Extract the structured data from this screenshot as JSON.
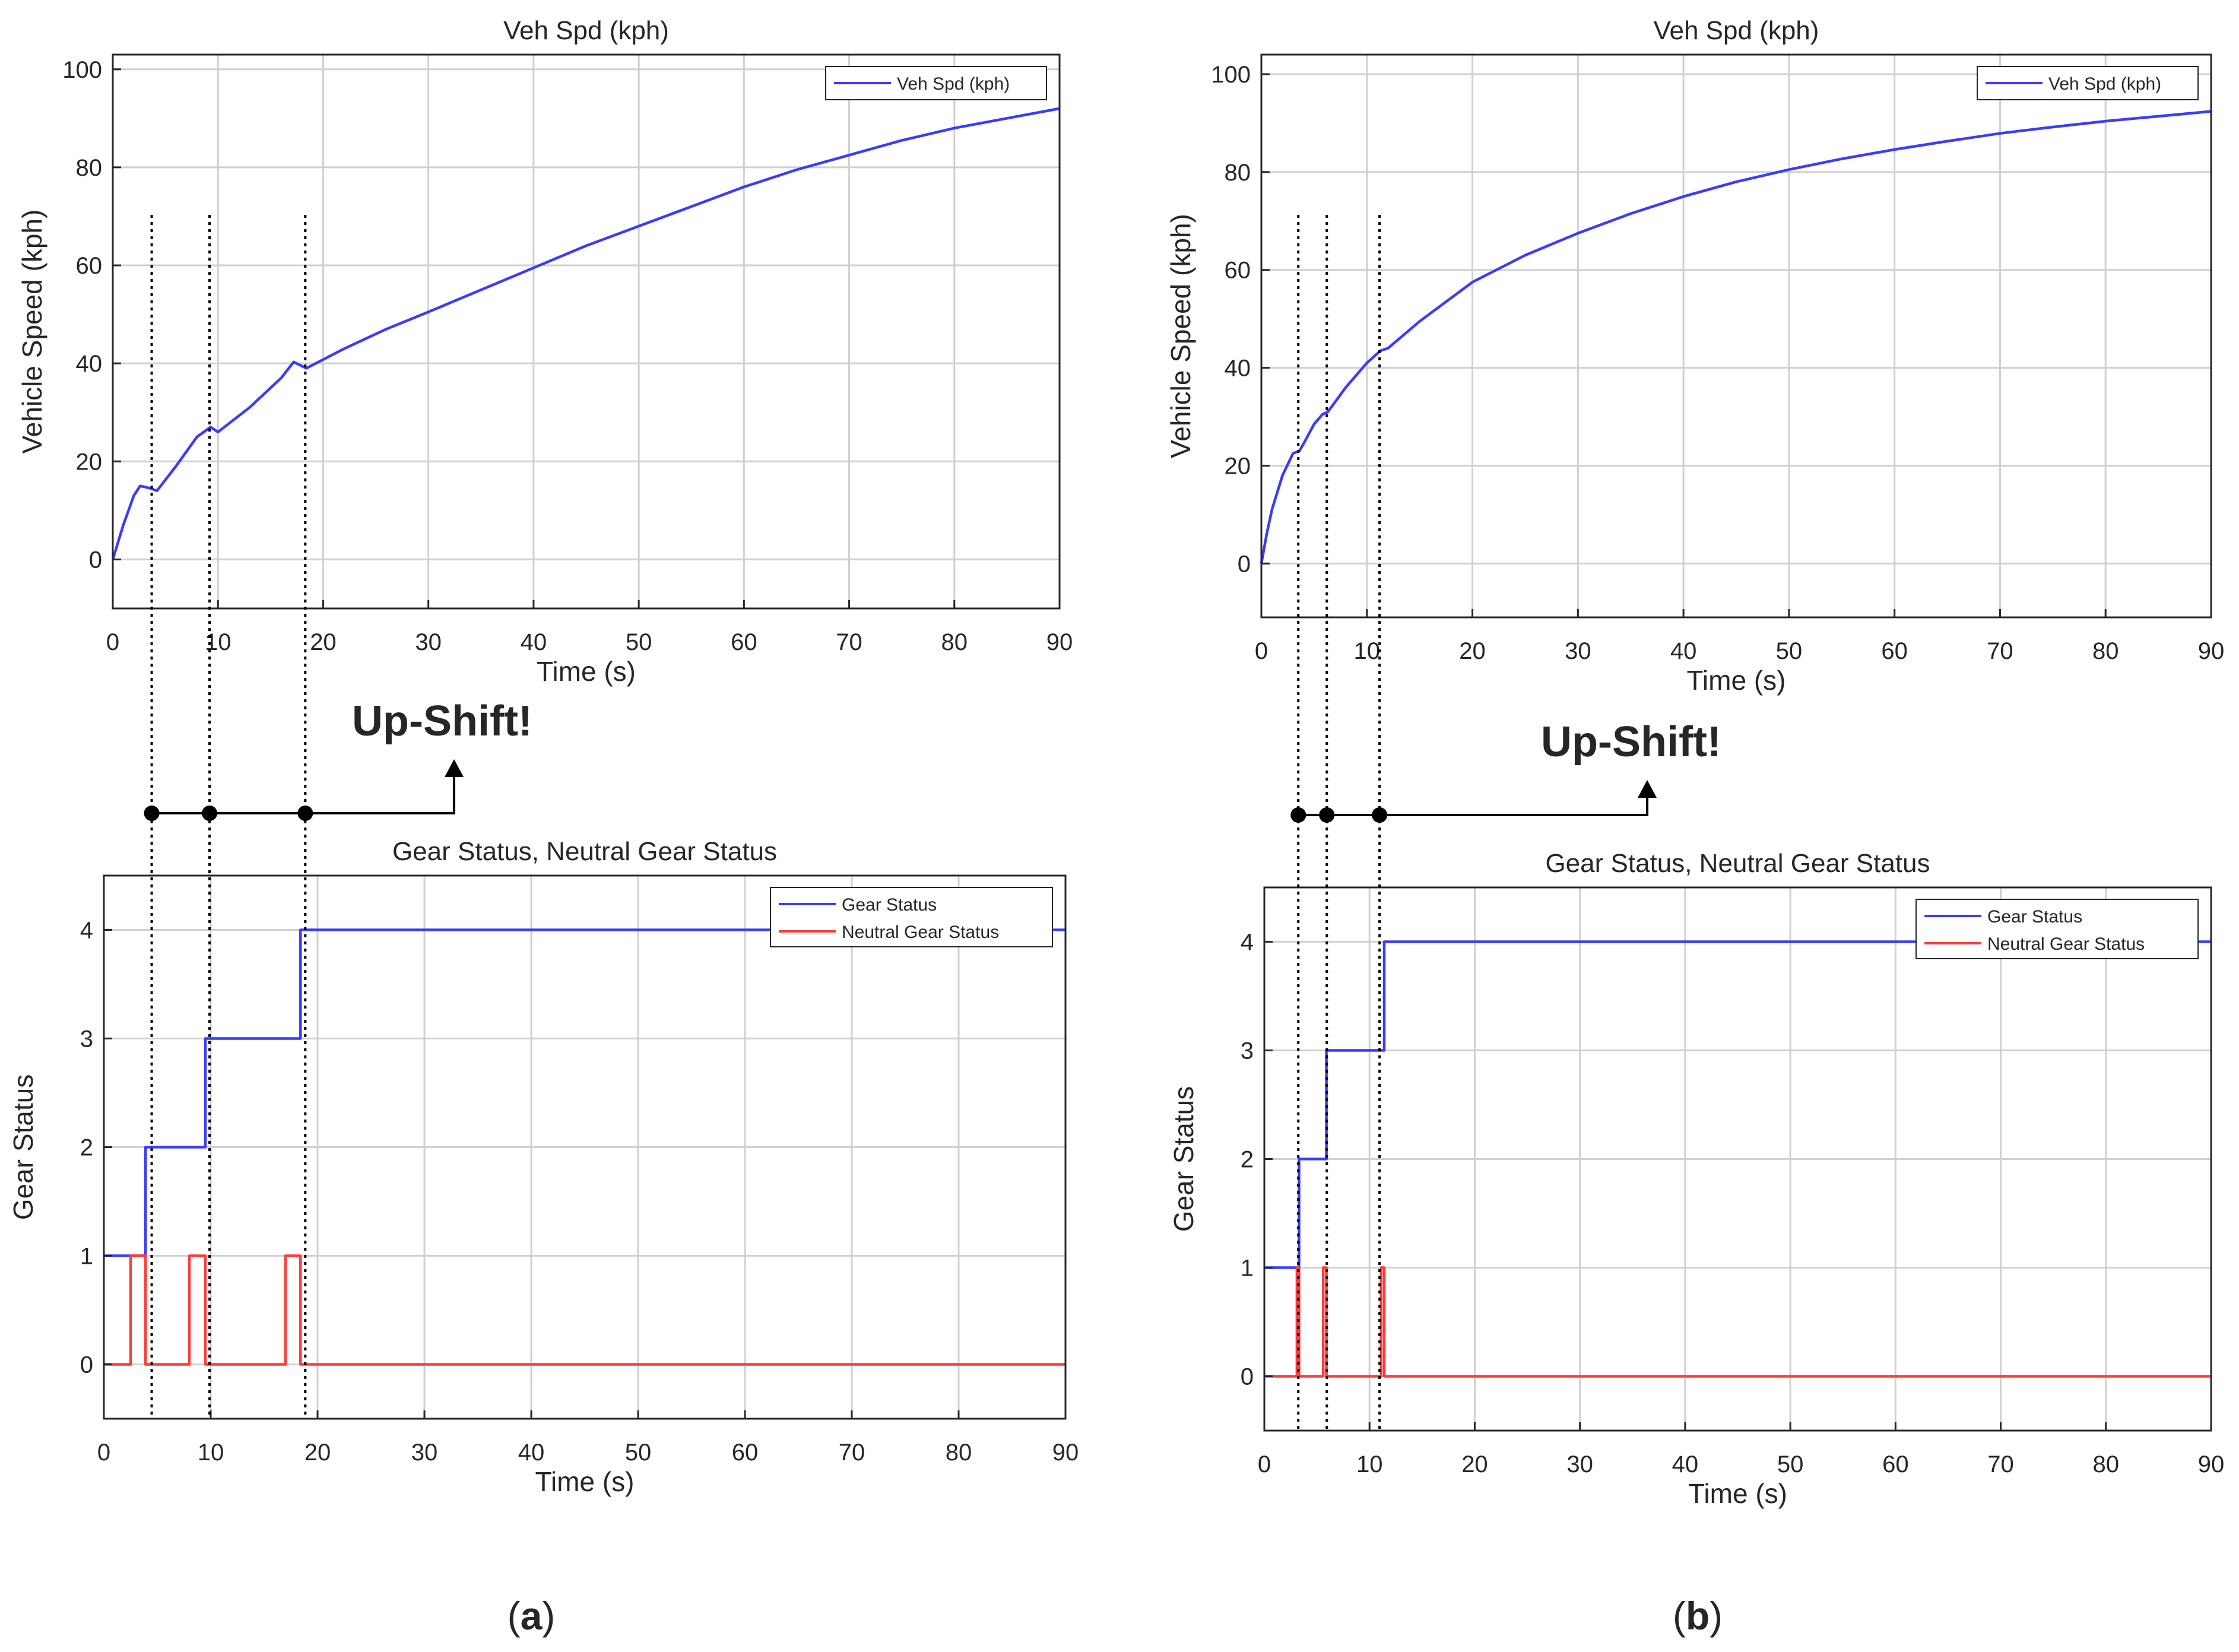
{
  "figure": {
    "panels": [
      {
        "id": "a",
        "caption_letter": "a",
        "upshift_label": "Up-Shift!"
      },
      {
        "id": "b",
        "caption_letter": "b",
        "upshift_label": "Up-Shift!"
      }
    ]
  },
  "colors": {
    "speed_line": "#3b3bff",
    "gear_line": "#3b3bff",
    "neutral_line": "#ff3b3b",
    "grid": "#d0d0d0",
    "axis": "#262626",
    "annotation": "#000000"
  },
  "chart_data": [
    {
      "type": "line",
      "panel": "a",
      "title": "Veh Spd (kph)",
      "xlabel": "Time (s)",
      "ylabel": "Vehicle Speed (kph)",
      "xlim": [
        0,
        90
      ],
      "ylim": [
        -10,
        103
      ],
      "xticks": [
        0,
        10,
        20,
        30,
        40,
        50,
        60,
        70,
        80,
        90
      ],
      "xtick_labels": [
        "0",
        "10",
        "20",
        "30",
        "40",
        "50",
        "60",
        "70",
        "80",
        "90"
      ],
      "yticks": [
        0,
        20,
        40,
        60,
        80,
        100
      ],
      "ytick_labels": [
        "0",
        "20",
        "40",
        "60",
        "80",
        "100"
      ],
      "grid": true,
      "legend_position": "top-right",
      "series": [
        {
          "name": "Veh Spd (kph)",
          "color": "#3b3bff",
          "x": [
            0,
            1,
            2,
            2.6,
            3.6,
            4.2,
            6,
            8,
            9.3,
            10,
            13,
            16,
            17.2,
            18.4,
            22,
            26,
            30,
            35,
            40,
            45,
            50,
            55,
            60,
            65,
            70,
            75,
            80,
            85,
            90
          ],
          "y": [
            0,
            7,
            13,
            15,
            14.5,
            14,
            19,
            25,
            27,
            26,
            31,
            37,
            40.3,
            39,
            43,
            47,
            50.5,
            55,
            59.5,
            64,
            68,
            72,
            76,
            79.5,
            82.5,
            85.5,
            88,
            90,
            92
          ]
        }
      ],
      "shift_times": [
        3.7,
        9.2,
        18.3
      ]
    },
    {
      "type": "line",
      "panel": "a",
      "title": "Gear Status, Neutral Gear Status",
      "xlabel": "Time (s)",
      "ylabel": "Gear Status",
      "xlim": [
        0,
        90
      ],
      "ylim": [
        -0.5,
        4.5
      ],
      "xticks": [
        0,
        10,
        20,
        30,
        40,
        50,
        60,
        70,
        80,
        90
      ],
      "xtick_labels": [
        "0",
        "10",
        "20",
        "30",
        "40",
        "50",
        "60",
        "70",
        "80",
        "90"
      ],
      "yticks": [
        0,
        1,
        2,
        3,
        4
      ],
      "ytick_labels": [
        "0",
        "1",
        "2",
        "3",
        "4"
      ],
      "grid": true,
      "legend_position": "top-right",
      "series": [
        {
          "name": "Gear Status",
          "color": "#3b3bff",
          "step": true,
          "x": [
            0,
            3.9,
            3.9,
            9.5,
            9.5,
            18.4,
            18.4,
            90
          ],
          "y": [
            1,
            1,
            2,
            2,
            3,
            3,
            4,
            4
          ]
        },
        {
          "name": "Neutral Gear Status",
          "color": "#ff3b3b",
          "step": true,
          "x": [
            0,
            2.5,
            2.5,
            3.9,
            3.9,
            8,
            8,
            9.5,
            9.5,
            17,
            17,
            18.4,
            18.4,
            90
          ],
          "y": [
            0,
            0,
            1,
            1,
            0,
            0,
            1,
            1,
            0,
            0,
            1,
            1,
            0,
            0
          ]
        }
      ]
    },
    {
      "type": "line",
      "panel": "b",
      "title": "Veh Spd (kph)",
      "xlabel": "Time (s)",
      "ylabel": "Vehicle Speed (kph)",
      "xlim": [
        0,
        90
      ],
      "ylim": [
        -11,
        104
      ],
      "xticks": [
        0,
        10,
        20,
        30,
        40,
        50,
        60,
        70,
        80,
        90
      ],
      "xtick_labels": [
        "0",
        "10",
        "20",
        "30",
        "40",
        "50",
        "60",
        "70",
        "80",
        "90"
      ],
      "yticks": [
        0,
        20,
        40,
        60,
        80,
        100
      ],
      "ytick_labels": [
        "0",
        "20",
        "40",
        "60",
        "80",
        "100"
      ],
      "grid": true,
      "legend_position": "top-right",
      "series": [
        {
          "name": "Veh Spd (kph)",
          "color": "#3b3bff",
          "x": [
            0,
            0.5,
            1,
            2,
            3,
            3.6,
            4,
            5,
            5.8,
            6.3,
            8,
            10,
            11.3,
            12,
            15,
            20,
            25,
            30,
            35,
            40,
            45,
            50,
            55,
            60,
            65,
            70,
            75,
            80,
            85,
            90
          ],
          "y": [
            0,
            6,
            11,
            18,
            22.5,
            23,
            24.5,
            28.5,
            30.5,
            31,
            36,
            41,
            43.5,
            44,
            49.5,
            57.5,
            63,
            67.5,
            71.5,
            75,
            78,
            80.5,
            82.7,
            84.6,
            86.3,
            87.9,
            89.2,
            90.4,
            91.4,
            92.4
          ]
        }
      ],
      "shift_times": [
        3.5,
        6.2,
        11.2
      ]
    },
    {
      "type": "line",
      "panel": "b",
      "title": "Gear Status, Neutral Gear Status",
      "xlabel": "Time (s)",
      "ylabel": "Gear Status",
      "xlim": [
        0,
        90
      ],
      "ylim": [
        -0.5,
        4.5
      ],
      "xticks": [
        0,
        10,
        20,
        30,
        40,
        50,
        60,
        70,
        80,
        90
      ],
      "xtick_labels": [
        "0",
        "10",
        "20",
        "30",
        "40",
        "50",
        "60",
        "70",
        "80",
        "90"
      ],
      "yticks": [
        0,
        1,
        2,
        3,
        4
      ],
      "ytick_labels": [
        "0",
        "1",
        "2",
        "3",
        "4"
      ],
      "grid": true,
      "legend_position": "top-right",
      "series": [
        {
          "name": "Gear Status",
          "color": "#3b3bff",
          "step": true,
          "x": [
            0,
            3.3,
            3.3,
            5.9,
            5.9,
            11.4,
            11.4,
            90
          ],
          "y": [
            1,
            1,
            2,
            2,
            3,
            3,
            4,
            4
          ]
        },
        {
          "name": "Neutral Gear Status",
          "color": "#ff3b3b",
          "step": true,
          "x": [
            0,
            3.1,
            3.1,
            3.3,
            3.3,
            5.6,
            5.6,
            5.9,
            5.9,
            11.1,
            11.1,
            11.4,
            11.4,
            90
          ],
          "y": [
            0,
            0,
            1,
            1,
            0,
            0,
            1,
            1,
            0,
            0,
            1,
            1,
            0,
            0
          ]
        }
      ]
    }
  ]
}
